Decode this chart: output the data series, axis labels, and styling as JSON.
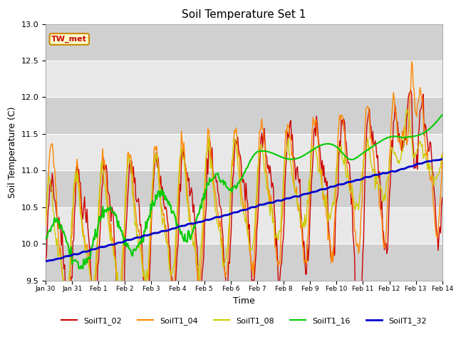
{
  "title": "Soil Temperature Set 1",
  "xlabel": "Time",
  "ylabel": "Soil Temperature (C)",
  "ylim": [
    9.5,
    13.0
  ],
  "annotation": "TW_met",
  "fig_bg": "#ffffff",
  "plot_bg_light": "#e8e8e8",
  "plot_bg_dark": "#d0d0d0",
  "series_colors": {
    "SoilT1_02": "#cc0000",
    "SoilT1_04": "#ff8800",
    "SoilT1_08": "#cccc00",
    "SoilT1_16": "#00cc00",
    "SoilT1_32": "#0000cc"
  },
  "x_tick_labels": [
    "Jan 30",
    "Jan 31",
    "Feb 1",
    "Feb 2",
    "Feb 3",
    "Feb 4",
    "Feb 5",
    "Feb 6",
    "Feb 7",
    "Feb 8",
    "Feb 9",
    "Feb 10",
    "Feb 11",
    "Feb 12",
    "Feb 13",
    "Feb 14"
  ],
  "yticks": [
    9.5,
    10.0,
    10.5,
    11.0,
    11.5,
    12.0,
    12.5,
    13.0
  ],
  "n_points": 480,
  "n_days": 15
}
